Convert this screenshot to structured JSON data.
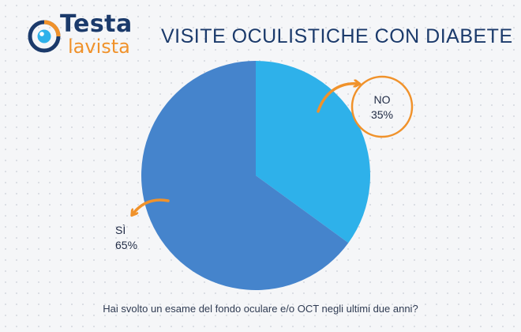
{
  "logo": {
    "word_1": "Testa",
    "word_2": "lavista"
  },
  "title": "VISITE OCULISTICHE CON DIABETE",
  "question": "Hai svolto un esame del fondo oculare e/o OCT negli ultimi due anni?",
  "colors": {
    "si": "#4584cc",
    "no": "#2eb1ea",
    "accent": "#f0922b",
    "navy": "#1b3a6b"
  },
  "chart_data": {
    "type": "pie",
    "title": "VISITE OCULISTICHE CON DIABETE",
    "slices": [
      {
        "label": "NO",
        "value": 35,
        "value_label": "35%"
      },
      {
        "label": "SÌ",
        "value": 65,
        "value_label": "65%"
      }
    ]
  }
}
